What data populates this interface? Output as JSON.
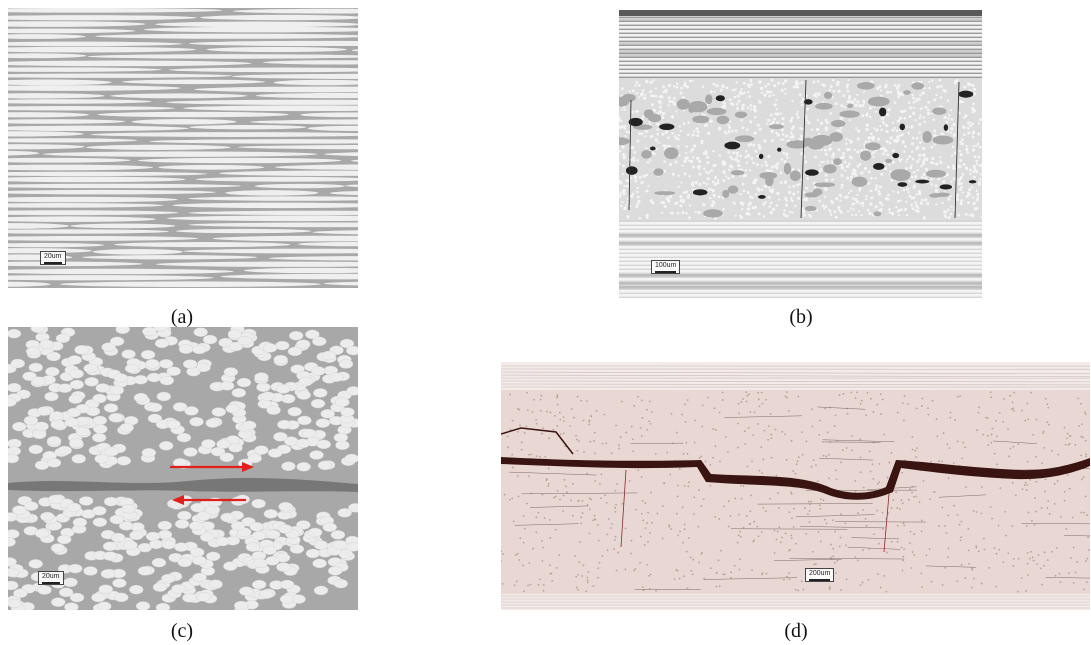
{
  "figure": {
    "panels": [
      {
        "id": "a",
        "caption": "(a)",
        "scale_bar": "20um"
      },
      {
        "id": "b",
        "caption": "(b)",
        "scale_bar": "100um"
      },
      {
        "id": "c",
        "caption": "(c)",
        "scale_bar": "20um"
      },
      {
        "id": "d",
        "caption": "(d)",
        "scale_bar": "200um"
      }
    ],
    "colors": {
      "fiber": "#efefef",
      "matrix": "#a8a8a8",
      "crack": "#3a1410",
      "arrow": "#e0201c",
      "pink_background": "#e8d7d3"
    }
  }
}
